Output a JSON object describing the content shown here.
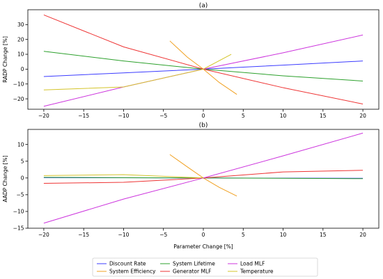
{
  "chart_data": [
    {
      "type": "line",
      "title": "(a)",
      "xlabel": "",
      "ylabel": "RADP Change [%]",
      "xlim": [
        -22,
        22
      ],
      "ylim": [
        -27,
        40
      ],
      "xticks": [
        -20,
        -15,
        -10,
        -5,
        0,
        5,
        10,
        15,
        20
      ],
      "yticks": [
        -20,
        -10,
        0,
        10,
        20,
        30
      ],
      "grid": false,
      "series": [
        {
          "name": "Discount Rate",
          "color": "#3b3bff",
          "x": [
            -20,
            -10,
            0,
            10,
            20
          ],
          "y": [
            -5,
            -2.5,
            0,
            2.7,
            5.5
          ]
        },
        {
          "name": "System Efficiency",
          "color": "#f0a020",
          "x": [
            -4.2,
            -2,
            0,
            2,
            4.2
          ],
          "y": [
            19,
            8,
            0,
            -9,
            -17
          ]
        },
        {
          "name": "System Lifetime",
          "color": "#2ca02c",
          "x": [
            -20,
            -10,
            0,
            10,
            20
          ],
          "y": [
            12,
            5.5,
            0,
            -4.5,
            -8
          ]
        },
        {
          "name": "Generator MLF",
          "color": "#ee3333",
          "x": [
            -20,
            -10,
            0,
            10,
            20
          ],
          "y": [
            36.5,
            15,
            0,
            -12.5,
            -23.5
          ]
        },
        {
          "name": "Load MLF",
          "color": "#cc33dd",
          "x": [
            -20,
            -10,
            0,
            10,
            20
          ],
          "y": [
            -25,
            -12,
            0,
            11,
            23
          ]
        },
        {
          "name": "Temperature",
          "color": "#d4c42a",
          "x": [
            -20,
            -10,
            0,
            3.5
          ],
          "y": [
            -14,
            -12,
            0,
            10
          ]
        }
      ]
    },
    {
      "type": "line",
      "title": "(b)",
      "xlabel": "Parameter Change [%]",
      "ylabel": "AADP Change [%]",
      "xlim": [
        -22,
        22
      ],
      "ylim": [
        -15,
        14.5
      ],
      "xticks": [
        -20,
        -15,
        -10,
        -5,
        0,
        5,
        10,
        15,
        20
      ],
      "yticks": [
        -15,
        -10,
        -5,
        0,
        5,
        10
      ],
      "grid": false,
      "series": [
        {
          "name": "Discount Rate",
          "color": "#3b3bff",
          "x": [
            -20,
            -10,
            0,
            10,
            20
          ],
          "y": [
            0.1,
            0.05,
            0,
            -0.05,
            -0.1
          ]
        },
        {
          "name": "System Efficiency",
          "color": "#f0a020",
          "x": [
            -4.2,
            -2,
            0,
            2,
            4.2
          ],
          "y": [
            7,
            3.3,
            0,
            -2.8,
            -5.4
          ]
        },
        {
          "name": "System Lifetime",
          "color": "#2ca02c",
          "x": [
            -20,
            -10,
            0,
            10,
            20
          ],
          "y": [
            0.2,
            0.1,
            0,
            -0.1,
            -0.2
          ]
        },
        {
          "name": "Generator MLF",
          "color": "#ee3333",
          "x": [
            -20,
            -10,
            0,
            10,
            20
          ],
          "y": [
            -1.6,
            -1.3,
            0,
            1.8,
            2.3
          ]
        },
        {
          "name": "Load MLF",
          "color": "#cc33dd",
          "x": [
            -20,
            -10,
            0,
            10,
            20
          ],
          "y": [
            -13.5,
            -6.3,
            0,
            6.6,
            13.4
          ]
        },
        {
          "name": "Temperature",
          "color": "#d4c42a",
          "x": [
            -20,
            -10,
            0
          ],
          "y": [
            0.7,
            1.0,
            0
          ]
        }
      ]
    }
  ],
  "legend": {
    "placement": "bottom-center",
    "columns": 4,
    "entries": [
      {
        "label": "Discount Rate",
        "color": "#3b3bff"
      },
      {
        "label": "System Efficiency",
        "color": "#f0a020"
      },
      {
        "label": "System Lifetime",
        "color": "#2ca02c"
      },
      {
        "label": "Generator MLF",
        "color": "#ee3333"
      },
      {
        "label": "Load MLF",
        "color": "#cc33dd"
      },
      {
        "label": "Temperature",
        "color": "#d4c42a"
      }
    ]
  }
}
